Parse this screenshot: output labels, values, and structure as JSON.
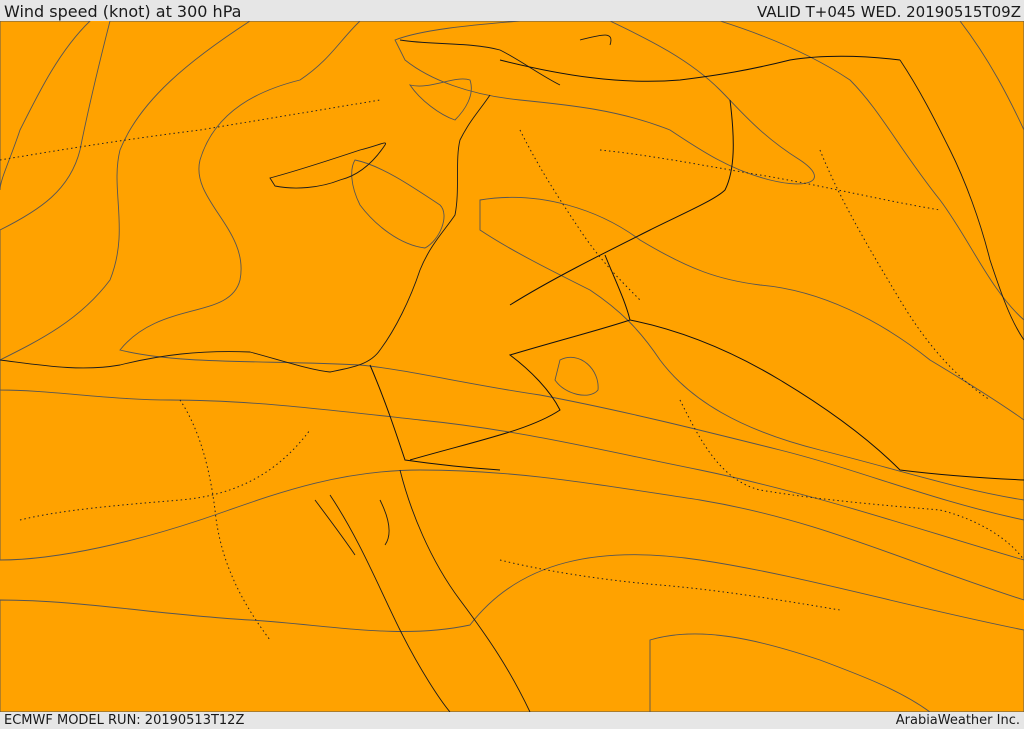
{
  "header": {
    "title": "Wind speed (knot) at 300 hPa",
    "valid": "VALID T+045 WED. 20190515T09Z"
  },
  "footer": {
    "model_run": "ECMWF MODEL RUN: 20190513T12Z",
    "credit": "ArabiaWeather Inc."
  },
  "colors": {
    "band_white": "#ffffff",
    "band_tan": "#ffdfa8",
    "band_yellow": "#ffff00",
    "band_gold": "#ffd500",
    "band_amber": "#ffbb00",
    "band_orange": "#ffa200",
    "band_dark_orange": "#ff8000",
    "band_red_orange": "#ff6000"
  }
}
